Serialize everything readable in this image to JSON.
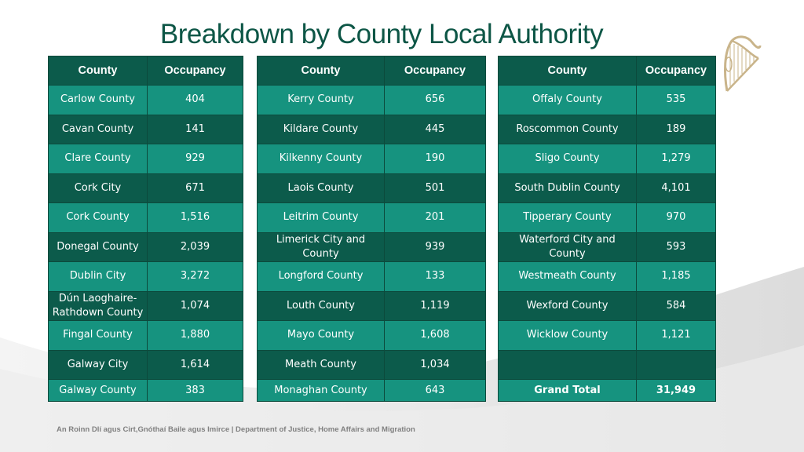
{
  "title": "Breakdown by County Local Authority",
  "headers": {
    "county": "County",
    "occupancy": "Occupancy"
  },
  "table1": [
    {
      "county": "Carlow County",
      "occupancy": "404"
    },
    {
      "county": "Cavan County",
      "occupancy": "141"
    },
    {
      "county": "Clare County",
      "occupancy": "929"
    },
    {
      "county": "Cork City",
      "occupancy": "671"
    },
    {
      "county": "Cork County",
      "occupancy": "1,516"
    },
    {
      "county": "Donegal County",
      "occupancy": "2,039"
    },
    {
      "county": "Dublin City",
      "occupancy": "3,272"
    },
    {
      "county": "Dún Laoghaire-Rathdown County",
      "occupancy": "1,074"
    },
    {
      "county": "Fingal County",
      "occupancy": "1,880"
    },
    {
      "county": "Galway City",
      "occupancy": "1,614"
    },
    {
      "county": "Galway County",
      "occupancy": "383"
    }
  ],
  "table2": [
    {
      "county": "Kerry County",
      "occupancy": "656"
    },
    {
      "county": "Kildare County",
      "occupancy": "445"
    },
    {
      "county": "Kilkenny County",
      "occupancy": "190"
    },
    {
      "county": "Laois County",
      "occupancy": "501"
    },
    {
      "county": "Leitrim County",
      "occupancy": "201"
    },
    {
      "county": "Limerick City and County",
      "occupancy": "939"
    },
    {
      "county": "Longford County",
      "occupancy": "133"
    },
    {
      "county": "Louth County",
      "occupancy": "1,119"
    },
    {
      "county": "Mayo County",
      "occupancy": "1,608"
    },
    {
      "county": "Meath County",
      "occupancy": "1,034"
    },
    {
      "county": "Monaghan County",
      "occupancy": "643"
    }
  ],
  "table3": [
    {
      "county": "Offaly County",
      "occupancy": "535"
    },
    {
      "county": "Roscommon County",
      "occupancy": "189"
    },
    {
      "county": "Sligo County",
      "occupancy": "1,279"
    },
    {
      "county": "South Dublin County",
      "occupancy": "4,101"
    },
    {
      "county": "Tipperary County",
      "occupancy": "970"
    },
    {
      "county": "Waterford City and County",
      "occupancy": "593"
    },
    {
      "county": "Westmeath County",
      "occupancy": "1,185"
    },
    {
      "county": "Wexford County",
      "occupancy": "584"
    },
    {
      "county": "Wicklow County",
      "occupancy": "1,121"
    },
    {
      "county": "",
      "occupancy": ""
    },
    {
      "county": "Grand Total",
      "occupancy": "31,949",
      "bold": true
    }
  ],
  "footer": "An Roinn Dlí agus Cirt,Gnóthaí Baile agus Imirce | Department of Justice, Home Affairs and Migration",
  "colors": {
    "title": "#0d5646",
    "row_light": "#16937f",
    "row_dark": "#0c5b4b",
    "harp": "#c9b48a"
  },
  "icons": {
    "logo": "harp-icon"
  }
}
